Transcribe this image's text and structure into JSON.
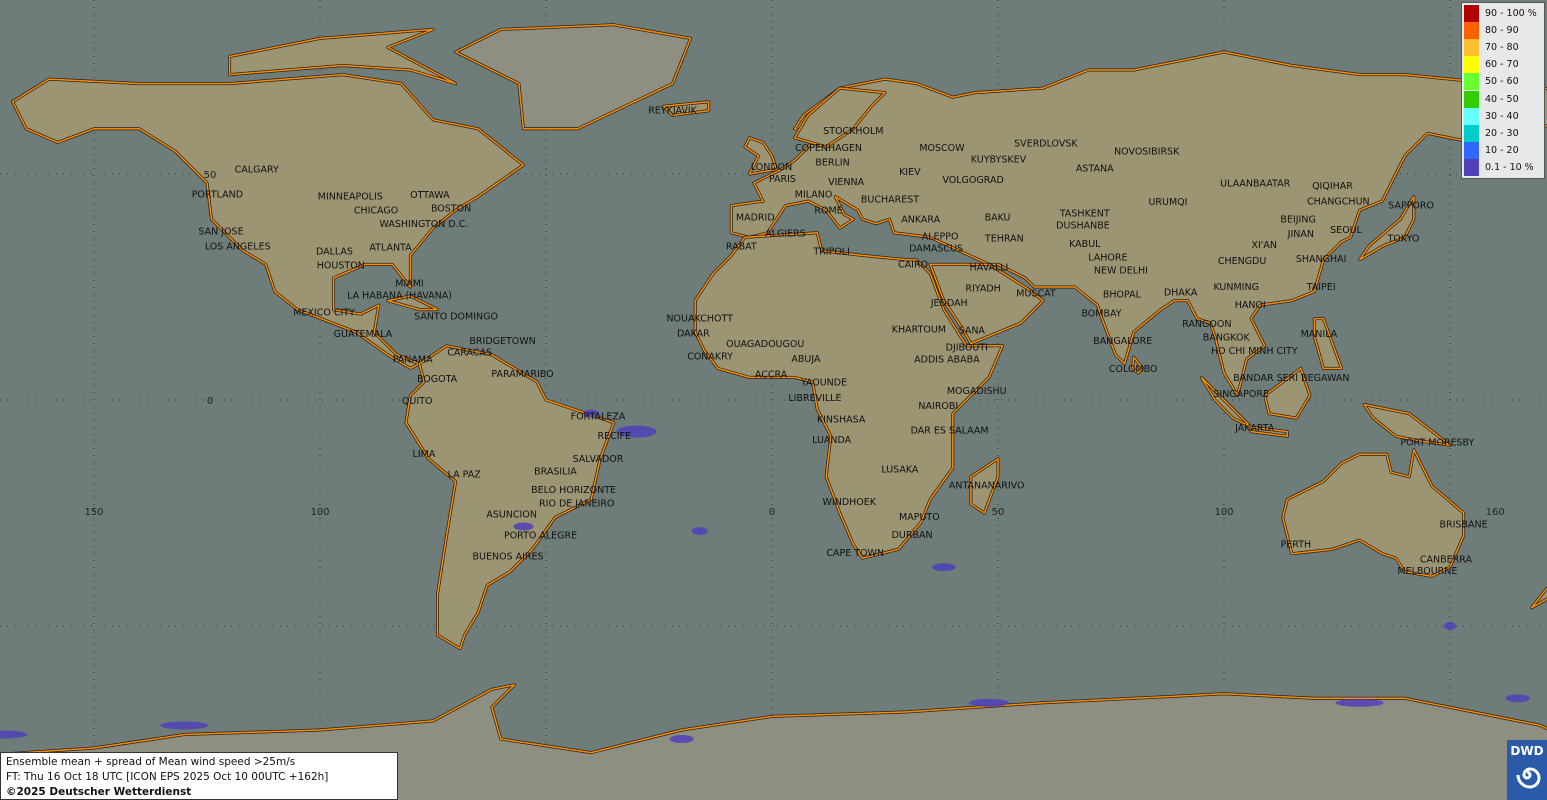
{
  "map": {
    "ocean_color": "#6f7d7a",
    "land_color": "#9b9574",
    "coast_color": "#ff8c00",
    "grid_lon_labels": [
      "150",
      "100",
      "0",
      "50",
      "100",
      "160"
    ],
    "grid_lat_labels": [
      "0",
      "50"
    ],
    "cities": [
      "REYKJAVIK",
      "STOCKHOLM",
      "COPENHAGEN",
      "BERLIN",
      "LONDON",
      "PARIS",
      "VIENNA",
      "MILANO",
      "ROME",
      "MADRID",
      "ALGIERS",
      "RABAT",
      "TRIPOLI",
      "BUCHAREST",
      "KIEV",
      "MOSCOW",
      "ANKARA",
      "ALEPPO",
      "DAMASCUS",
      "CAIRO",
      "BAKU",
      "TEHRAN",
      "HAVALLI",
      "RIYADH",
      "MUSCAT",
      "JEDDAH",
      "SANA",
      "KHARTOUM",
      "DJIBOUTI",
      "ADDIS ABABA",
      "MOGADISHU",
      "NAIROBI",
      "DAR ES SALAAM",
      "KINSHASA",
      "LUANDA",
      "LIBREVILLE",
      "YAOUNDE",
      "ABUJA",
      "ACCRA",
      "OUAGADOUGOU",
      "NOUAKCHOTT",
      "DAKAR",
      "CONAKRY",
      "LUSAKA",
      "WINDHOEK",
      "MAPUTO",
      "DURBAN",
      "CAPE TOWN",
      "ANTANANARIVO",
      "SVERDLOVSK",
      "KUYBYSKEV",
      "VOLGOGRAD",
      "NOVOSIBIRSK",
      "ASTANA",
      "TASHKENT",
      "DUSHANBE",
      "KABUL",
      "LAHORE",
      "NEW DELHI",
      "BHOPAL",
      "BOMBAY",
      "BANGALORE",
      "COLOMBO",
      "DHAKA",
      "KUNMING",
      "CHENGDU",
      "XI'AN",
      "HANOI",
      "RANGOON",
      "BANGKOK",
      "HO CHI MINH CITY",
      "BANDAR SERI BEGAWAN",
      "SINGAPORE",
      "JAKARTA",
      "MANILA",
      "TAIPEI",
      "SHANGHAI",
      "BEIJING",
      "JINAN",
      "SEOUL",
      "TOKYO",
      "SAPPORO",
      "CHANGCHUN",
      "QIQIHAR",
      "ULAANBAATAR",
      "URUMQI",
      "PORT MORESBY",
      "BRISBANE",
      "CANBERRA",
      "MELBOURNE",
      "PERTH",
      "CALGARY",
      "PORTLAND",
      "SAN JOSE",
      "LOS ANGELES",
      "MINNEAPOLIS",
      "CHICAGO",
      "OTTAWA",
      "BOSTON",
      "WASHINGTON D.C.",
      "ATLANTA",
      "DALLAS",
      "HOUSTON",
      "MIAMI",
      "LA HABANA (HAVANA)",
      "MEXICO CITY",
      "SANTO DOMINGO",
      "GUATEMALA",
      "PANAMA",
      "CARACAS",
      "BRIDGETOWN",
      "BOGOTA",
      "PARAMARIBO",
      "QUITO",
      "FORTALEZA",
      "RECIFE",
      "SALVADOR",
      "LIMA",
      "LA PAZ",
      "BRASILIA",
      "BELO HORIZONTE",
      "RIO DE JANEIRO",
      "ASUNCION",
      "PORTO ALEGRE",
      "BUENOS AIRES"
    ]
  },
  "legend": {
    "title_unit": "%",
    "items": [
      {
        "label": "90 - 100 %",
        "color": "#b00000"
      },
      {
        "label": "80 - 90",
        "color": "#ff6000"
      },
      {
        "label": "70 - 80",
        "color": "#ffc030"
      },
      {
        "label": "60 - 70",
        "color": "#ffff00"
      },
      {
        "label": "50 - 60",
        "color": "#66ff33"
      },
      {
        "label": "40 - 50",
        "color": "#33cc00"
      },
      {
        "label": "30 - 40",
        "color": "#66ffff"
      },
      {
        "label": "20 - 30",
        "color": "#00cccc"
      },
      {
        "label": "10 - 20",
        "color": "#3366ff"
      },
      {
        "label": "0.1 - 10 %",
        "color": "#5040b8"
      }
    ]
  },
  "info": {
    "line1": "Ensemble mean + spread of Mean wind speed >25m/s",
    "line2": "FT: Thu 16 Oct 18 UTC [ICON EPS 2025 Oct 10 00UTC +162h]",
    "line3": "©2025 Deutscher Wetterdienst"
  },
  "logo": {
    "text": "DWD"
  }
}
